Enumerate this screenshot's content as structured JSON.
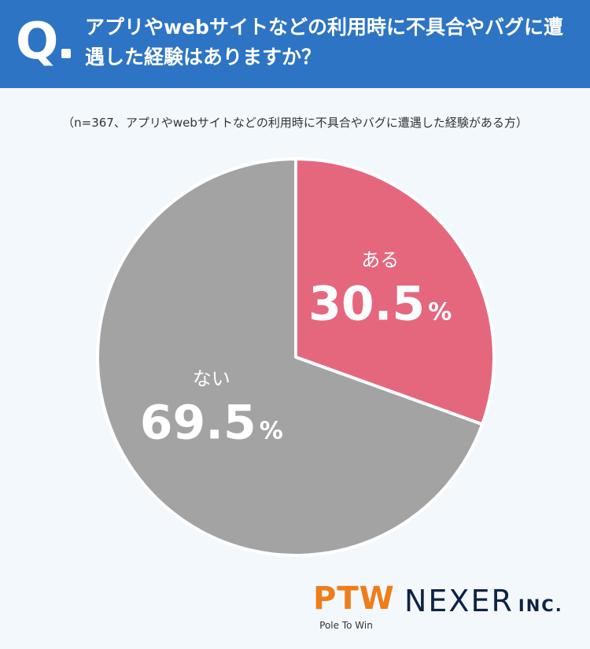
{
  "header": {
    "q_label": "Q",
    "question": "アプリやwebサイトなどの利用時に不具合やバグに遭遇した経験はありますか？"
  },
  "note": "（n=367、アプリやwebサイトなどの利用時に不具合やバグに遭遇した経験がある方）",
  "chart_data": {
    "type": "pie",
    "categories": [
      "ある",
      "ない"
    ],
    "values": [
      30.5,
      69.5
    ],
    "unit": "%",
    "colors": [
      "#e5677e",
      "#a3a3a3"
    ]
  },
  "logos": {
    "ptw_mark": "PTW",
    "ptw_sub": "Pole To Win",
    "nexer_name": "NEXER",
    "nexer_suffix": "INC."
  }
}
